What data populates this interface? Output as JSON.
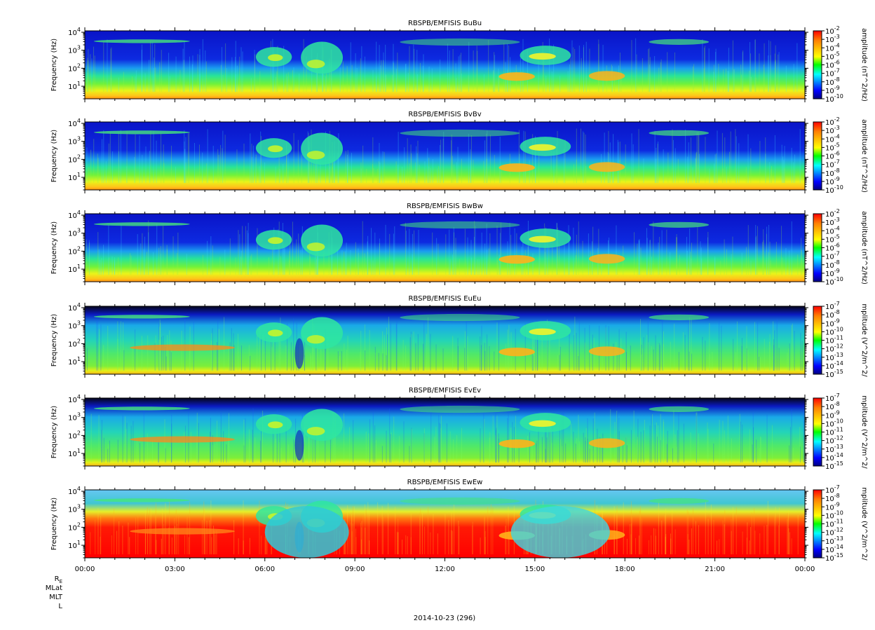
{
  "figure": {
    "time_ticks": [
      "00:00",
      "03:00",
      "06:00",
      "09:00",
      "12:00",
      "15:00",
      "18:00",
      "21:00",
      "00:00"
    ],
    "ephemeris_labels": [
      "R",
      "MLat",
      "MLT",
      "L"
    ],
    "ephemeris_subscript": "E",
    "date_label": "2014-10-23 (296)"
  },
  "chart_data": [
    {
      "type": "heatmap",
      "title": "RBSPB/EMFISIS  BuBu",
      "ylabel": "Frequency (Hz)",
      "yscale": "log",
      "ylim": [
        2,
        12000
      ],
      "yticks": [
        {
          "base": "10",
          "exp": "4"
        },
        {
          "base": "10",
          "exp": "3"
        },
        {
          "base": "10",
          "exp": "2"
        },
        {
          "base": "10",
          "exp": "1"
        }
      ],
      "colorbar_label": "amplitude (nT^2/Hz)",
      "colorbar_ticks": [
        {
          "base": "10",
          "exp": "-2"
        },
        {
          "base": "10",
          "exp": "-3"
        },
        {
          "base": "10",
          "exp": "-4"
        },
        {
          "base": "10",
          "exp": "-5"
        },
        {
          "base": "10",
          "exp": "-6"
        },
        {
          "base": "10",
          "exp": "-7"
        },
        {
          "base": "10",
          "exp": "-8"
        },
        {
          "base": "10",
          "exp": "-9"
        },
        {
          "base": "10",
          "exp": "-10"
        }
      ],
      "clim": [
        1e-10,
        0.01
      ],
      "xlim_hours": [
        0,
        24
      ]
    },
    {
      "type": "heatmap",
      "title": "RBSPB/EMFISIS  BvBv",
      "ylabel": "Frequency (Hz)",
      "yscale": "log",
      "ylim": [
        2,
        12000
      ],
      "yticks": [
        {
          "base": "10",
          "exp": "4"
        },
        {
          "base": "10",
          "exp": "3"
        },
        {
          "base": "10",
          "exp": "2"
        },
        {
          "base": "10",
          "exp": "1"
        }
      ],
      "colorbar_label": "amplitude (nT^2/Hz)",
      "colorbar_ticks": [
        {
          "base": "10",
          "exp": "-2"
        },
        {
          "base": "10",
          "exp": "-3"
        },
        {
          "base": "10",
          "exp": "-4"
        },
        {
          "base": "10",
          "exp": "-5"
        },
        {
          "base": "10",
          "exp": "-6"
        },
        {
          "base": "10",
          "exp": "-7"
        },
        {
          "base": "10",
          "exp": "-8"
        },
        {
          "base": "10",
          "exp": "-9"
        },
        {
          "base": "10",
          "exp": "-10"
        }
      ],
      "clim": [
        1e-10,
        0.01
      ],
      "xlim_hours": [
        0,
        24
      ]
    },
    {
      "type": "heatmap",
      "title": "RBSPB/EMFISIS  BwBw",
      "ylabel": "Frequency (Hz)",
      "yscale": "log",
      "ylim": [
        2,
        12000
      ],
      "yticks": [
        {
          "base": "10",
          "exp": "4"
        },
        {
          "base": "10",
          "exp": "3"
        },
        {
          "base": "10",
          "exp": "2"
        },
        {
          "base": "10",
          "exp": "1"
        }
      ],
      "colorbar_label": "amplitude (nT^2/Hz)",
      "colorbar_ticks": [
        {
          "base": "10",
          "exp": "-2"
        },
        {
          "base": "10",
          "exp": "-3"
        },
        {
          "base": "10",
          "exp": "-4"
        },
        {
          "base": "10",
          "exp": "-5"
        },
        {
          "base": "10",
          "exp": "-6"
        },
        {
          "base": "10",
          "exp": "-7"
        },
        {
          "base": "10",
          "exp": "-8"
        },
        {
          "base": "10",
          "exp": "-9"
        },
        {
          "base": "10",
          "exp": "-10"
        }
      ],
      "clim": [
        1e-10,
        0.01
      ],
      "xlim_hours": [
        0,
        24
      ]
    },
    {
      "type": "heatmap",
      "title": "RBSPB/EMFISIS  EuEu",
      "ylabel": "Frequency (Hz)",
      "yscale": "log",
      "ylim": [
        2,
        12000
      ],
      "yticks": [
        {
          "base": "10",
          "exp": "4"
        },
        {
          "base": "10",
          "exp": "3"
        },
        {
          "base": "10",
          "exp": "2"
        },
        {
          "base": "10",
          "exp": "1"
        }
      ],
      "colorbar_label": "mplitude (V^2/m^2/",
      "colorbar_ticks": [
        {
          "base": "10",
          "exp": "-7"
        },
        {
          "base": "10",
          "exp": "-8"
        },
        {
          "base": "10",
          "exp": "-9"
        },
        {
          "base": "10",
          "exp": "-10"
        },
        {
          "base": "10",
          "exp": "-11"
        },
        {
          "base": "10",
          "exp": "-12"
        },
        {
          "base": "10",
          "exp": "-13"
        },
        {
          "base": "10",
          "exp": "-14"
        },
        {
          "base": "10",
          "exp": "-15"
        }
      ],
      "clim": [
        1e-15,
        1e-07
      ],
      "xlim_hours": [
        0,
        24
      ]
    },
    {
      "type": "heatmap",
      "title": "RBSPB/EMFISIS  EvEv",
      "ylabel": "Frequency (Hz)",
      "yscale": "log",
      "ylim": [
        2,
        12000
      ],
      "yticks": [
        {
          "base": "10",
          "exp": "4"
        },
        {
          "base": "10",
          "exp": "3"
        },
        {
          "base": "10",
          "exp": "2"
        },
        {
          "base": "10",
          "exp": "1"
        }
      ],
      "colorbar_label": "mplitude (V^2/m^2/",
      "colorbar_ticks": [
        {
          "base": "10",
          "exp": "-7"
        },
        {
          "base": "10",
          "exp": "-8"
        },
        {
          "base": "10",
          "exp": "-9"
        },
        {
          "base": "10",
          "exp": "-10"
        },
        {
          "base": "10",
          "exp": "-11"
        },
        {
          "base": "10",
          "exp": "-12"
        },
        {
          "base": "10",
          "exp": "-13"
        },
        {
          "base": "10",
          "exp": "-14"
        },
        {
          "base": "10",
          "exp": "-15"
        }
      ],
      "clim": [
        1e-15,
        1e-07
      ],
      "xlim_hours": [
        0,
        24
      ]
    },
    {
      "type": "heatmap",
      "title": "RBSPB/EMFISIS  EwEw",
      "ylabel": "Frequency (Hz)",
      "yscale": "log",
      "ylim": [
        2,
        12000
      ],
      "yticks": [
        {
          "base": "10",
          "exp": "4"
        },
        {
          "base": "10",
          "exp": "3"
        },
        {
          "base": "10",
          "exp": "2"
        },
        {
          "base": "10",
          "exp": "1"
        }
      ],
      "colorbar_label": "mplitude (V^2/m^2/",
      "colorbar_ticks": [
        {
          "base": "10",
          "exp": "-7"
        },
        {
          "base": "10",
          "exp": "-8"
        },
        {
          "base": "10",
          "exp": "-9"
        },
        {
          "base": "10",
          "exp": "-10"
        },
        {
          "base": "10",
          "exp": "-11"
        },
        {
          "base": "10",
          "exp": "-12"
        },
        {
          "base": "10",
          "exp": "-13"
        },
        {
          "base": "10",
          "exp": "-14"
        },
        {
          "base": "10",
          "exp": "-15"
        }
      ],
      "clim": [
        1e-15,
        1e-07
      ],
      "xlim_hours": [
        0,
        24
      ]
    }
  ]
}
